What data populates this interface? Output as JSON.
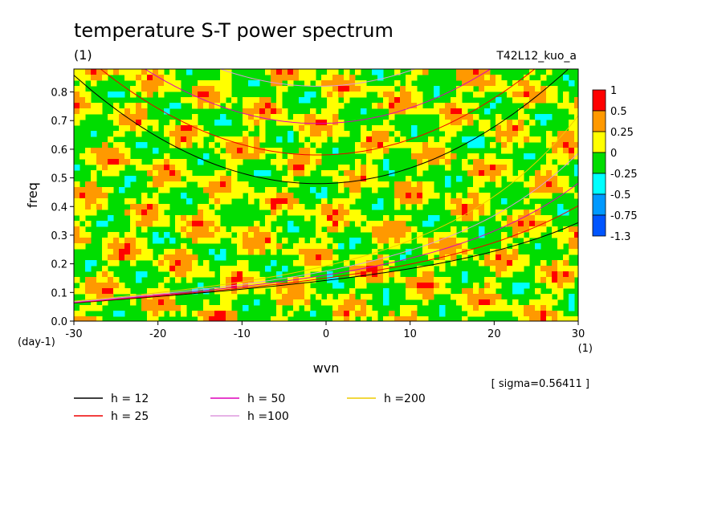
{
  "chart_data": {
    "type": "heatmap",
    "title": "temperature S-T power spectrum",
    "subtitle": "(1)",
    "experiment": "T42L12_kuo_a",
    "xlabel": "wvn",
    "x_unit": "(1)",
    "ylabel": "freq",
    "y_unit": "(day-1)",
    "xlim": [
      -30,
      30
    ],
    "ylim": [
      0,
      0.88
    ],
    "x_ticks": [
      -30,
      -20,
      -10,
      0,
      10,
      20,
      30
    ],
    "y_ticks": [
      0.0,
      0.1,
      0.2,
      0.3,
      0.4,
      0.5,
      0.6,
      0.7,
      0.8
    ],
    "sigma_note": "[ sigma=0.56411 ]",
    "colorbar": {
      "labels": [
        "1",
        "0.5",
        "0.25",
        "0",
        "-0.25",
        "-0.5",
        "-0.75",
        "-1.3"
      ],
      "colors": [
        "#ff0000",
        "#ff9900",
        "#ffff00",
        "#00dd00",
        "#00ffff",
        "#0099ff",
        "#0055ff"
      ]
    },
    "field": {
      "description_levels": [
        -1.3,
        -0.75,
        -0.5,
        -0.25,
        0,
        0.25,
        0.5,
        1
      ],
      "background_mix": {
        "yellow": 0.5,
        "green": 0.5
      }
    },
    "dispersion_curves": [
      {
        "label": "h = 12",
        "color": "#000000"
      },
      {
        "label": "h = 25",
        "color": "#ee0000"
      },
      {
        "label": "h = 50",
        "color": "#dd00bb"
      },
      {
        "label": "h =100",
        "color": "#dd99dd"
      },
      {
        "label": "h =200",
        "color": "#eecc00"
      }
    ]
  }
}
